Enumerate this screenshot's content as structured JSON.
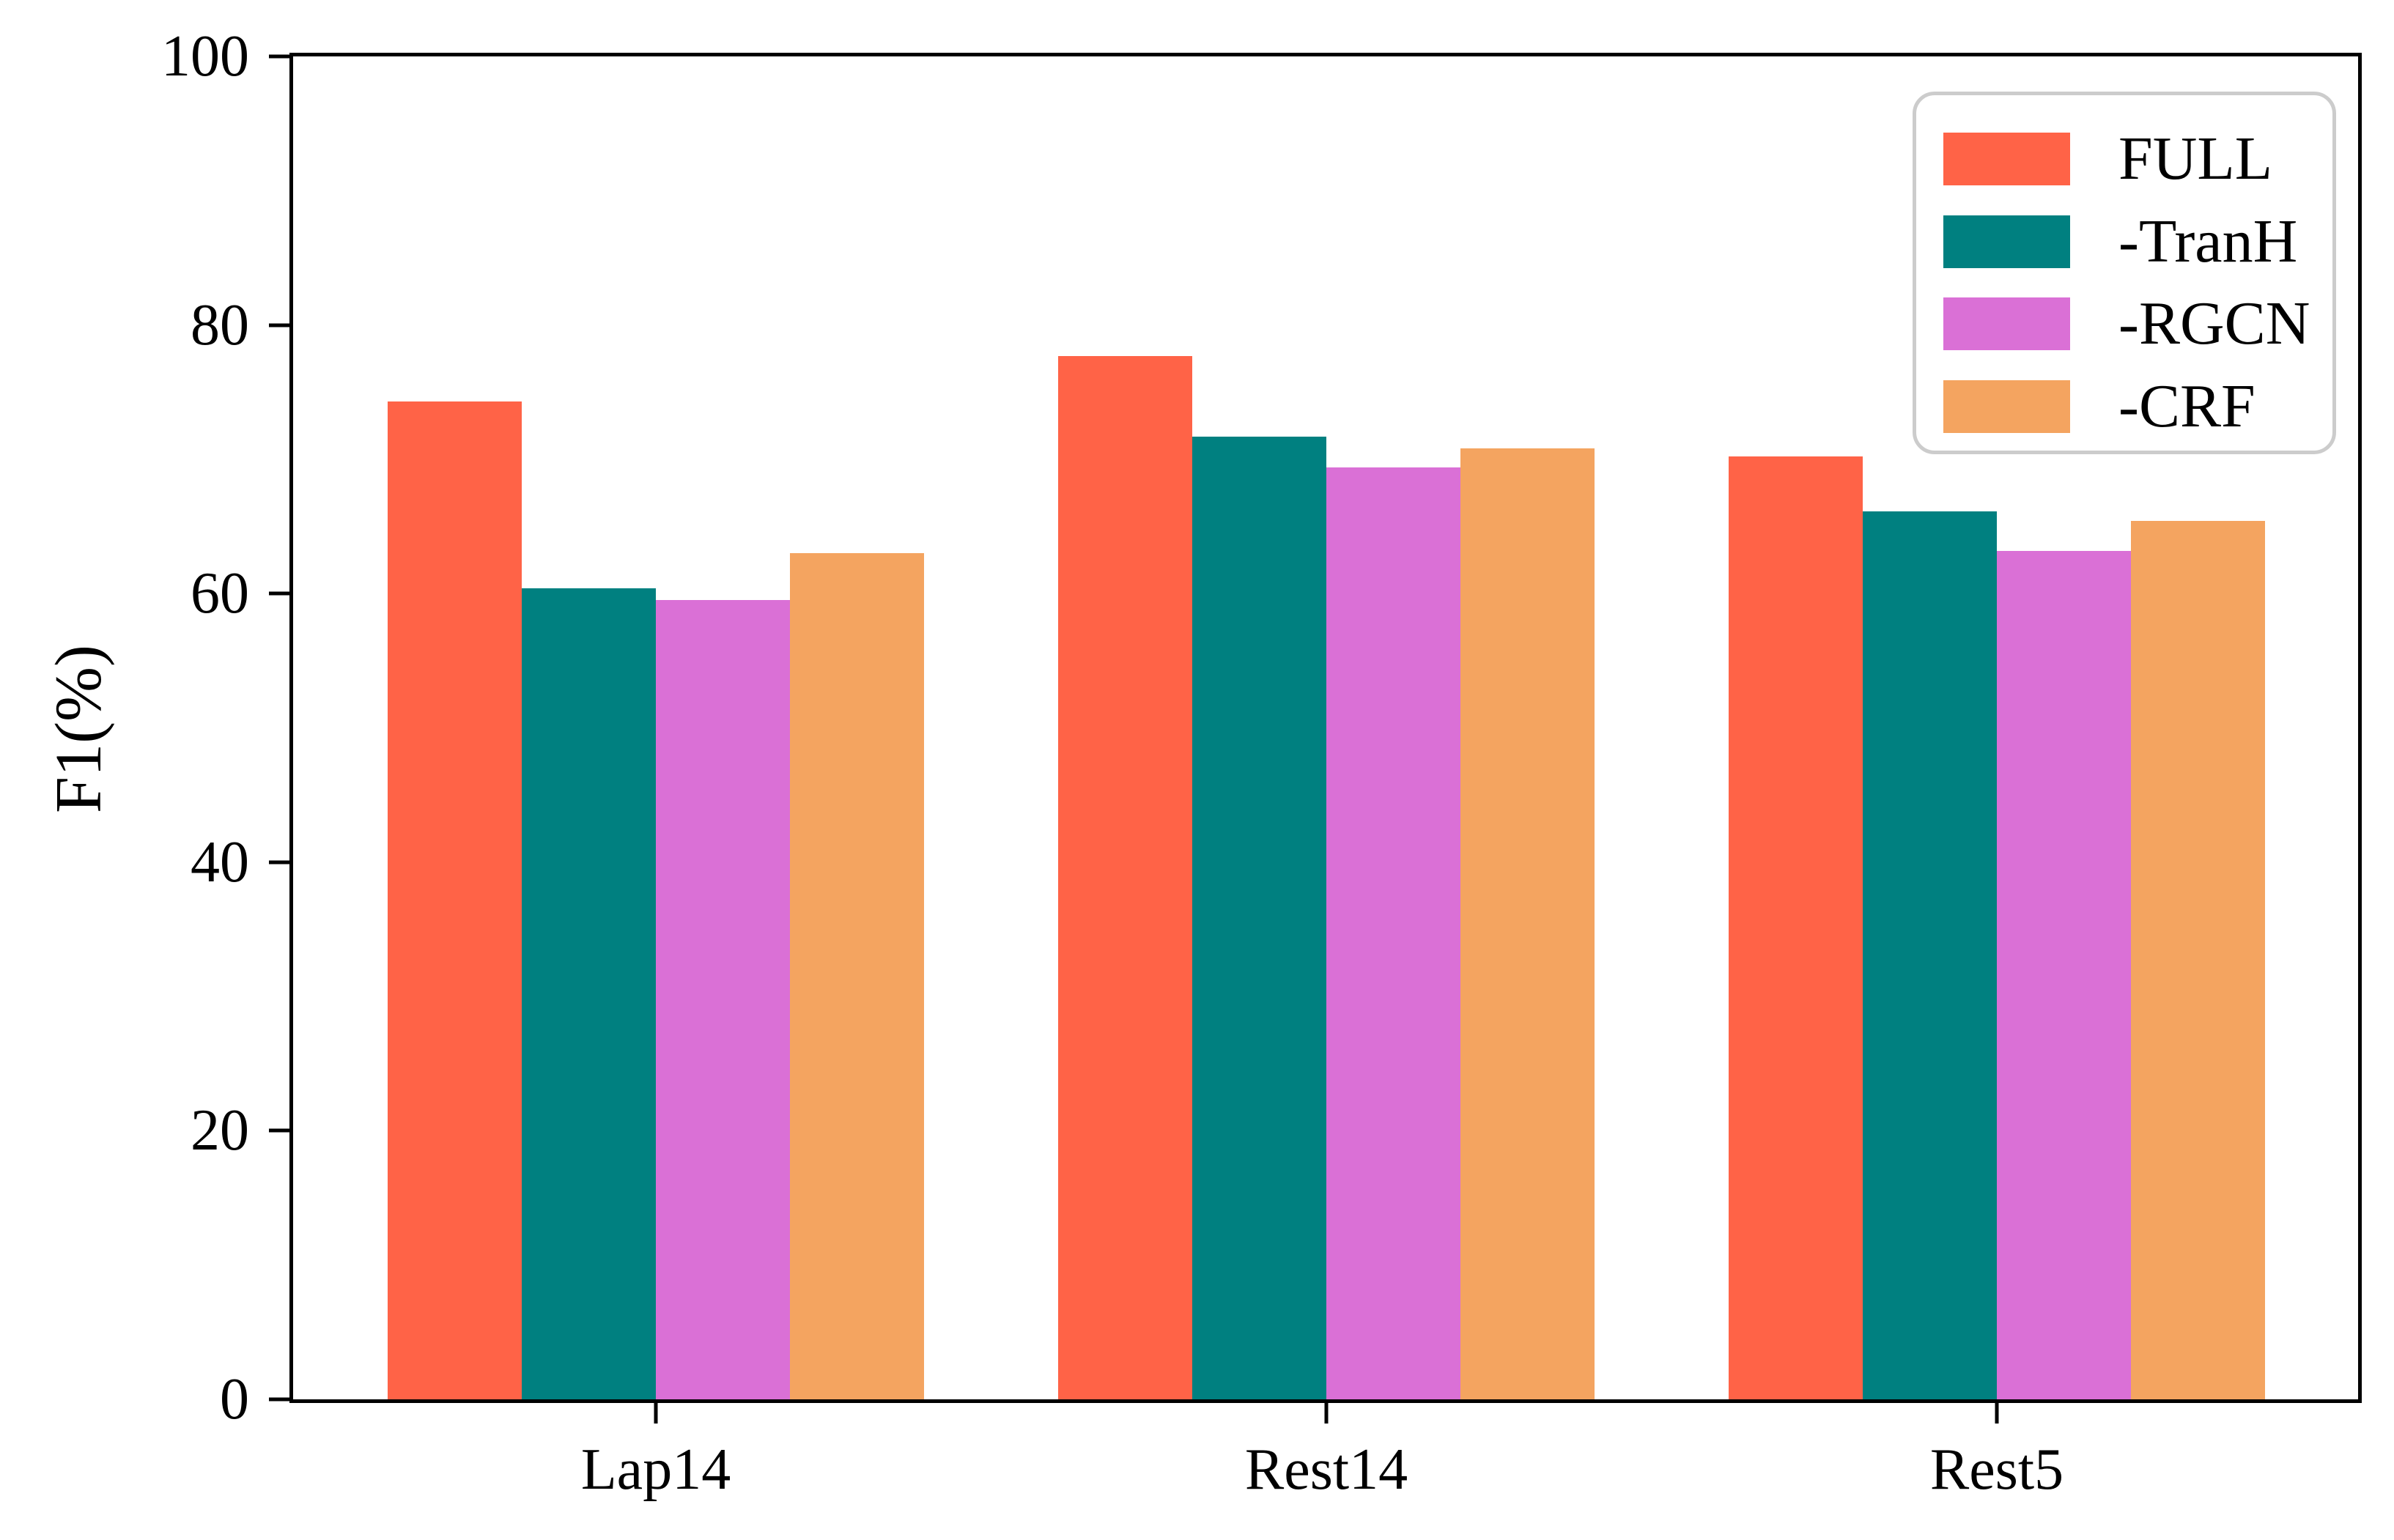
{
  "figure": {
    "background": "#ffffff",
    "axis_color": "#000000",
    "legend_border_color": "#cccccc"
  },
  "chart_data": {
    "type": "bar",
    "title": "",
    "xlabel": "",
    "ylabel": "F1(%)",
    "categories": [
      "Lap14",
      "Rest14",
      "Rest5"
    ],
    "series": [
      {
        "name": "FULL",
        "color": "#FF6347",
        "values": [
          74.3,
          77.7,
          70.2
        ]
      },
      {
        "name": "-TranH",
        "color": "#008080",
        "values": [
          60.4,
          71.7,
          66.1
        ]
      },
      {
        "name": "-RGCN",
        "color": "#DA70D6",
        "values": [
          59.5,
          69.4,
          63.2
        ]
      },
      {
        "name": "-CRF",
        "color": "#F4A460",
        "values": [
          63.0,
          70.8,
          65.4
        ]
      }
    ],
    "ylim": [
      0,
      100
    ],
    "yticks": [
      "0",
      "20",
      "40",
      "60",
      "80",
      "100"
    ],
    "grid": false,
    "legend_position": "upper right"
  }
}
